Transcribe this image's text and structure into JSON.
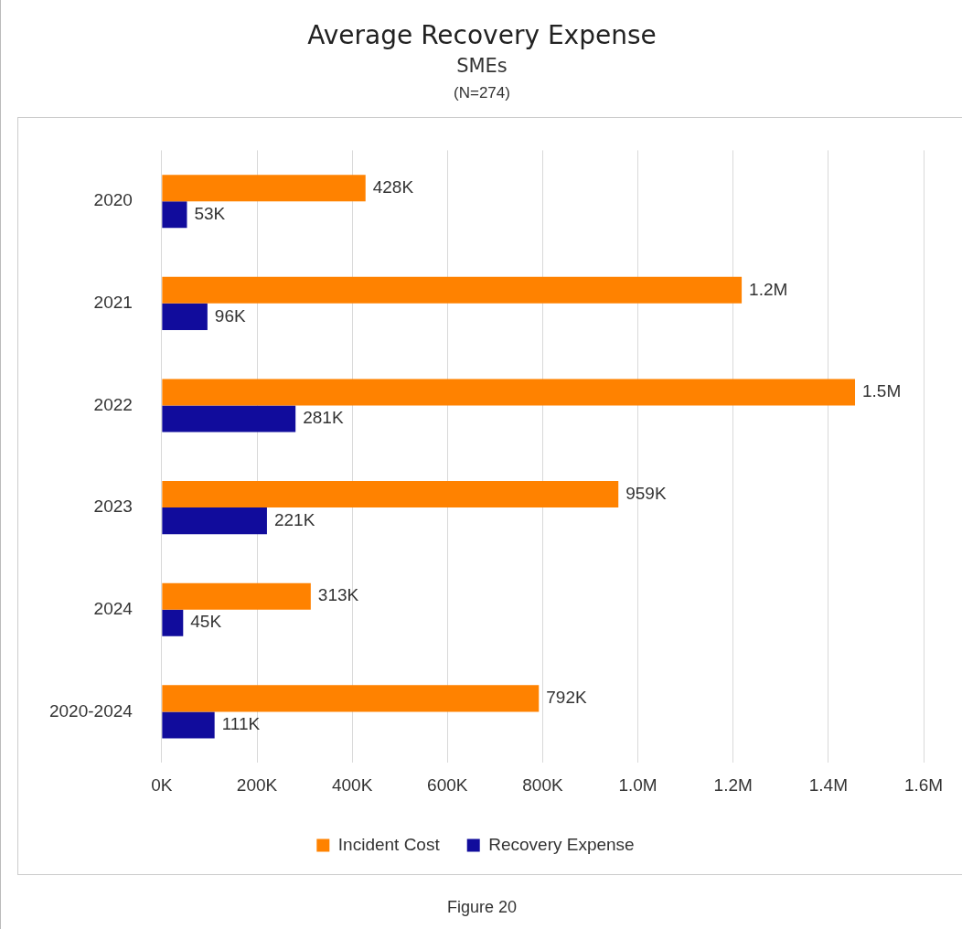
{
  "chart_data": {
    "type": "bar",
    "orientation": "horizontal",
    "title": "Average Recovery Expense",
    "subtitle": "SMEs",
    "annotations": [
      "(N=274)",
      "Figure 20"
    ],
    "categories": [
      "2020",
      "2021",
      "2022",
      "2023",
      "2024",
      "2020-2024"
    ],
    "series": [
      {
        "name": "Incident Cost",
        "color": "#ff8200",
        "values": [
          428000,
          1218000,
          1456000,
          959000,
          313000,
          792000
        ],
        "value_labels": [
          "428K",
          "1.2M",
          "1.5M",
          "959K",
          "313K",
          "792K"
        ]
      },
      {
        "name": "Recovery Expense",
        "color": "#110c9c",
        "values": [
          53000,
          96000,
          281000,
          221000,
          45000,
          111000
        ],
        "value_labels": [
          "53K",
          "96K",
          "281K",
          "221K",
          "45K",
          "111K"
        ]
      }
    ],
    "xlim": [
      0,
      1600000
    ],
    "xticks": [
      {
        "value": 0,
        "label": "0K"
      },
      {
        "value": 200000,
        "label": "200K"
      },
      {
        "value": 400000,
        "label": "400K"
      },
      {
        "value": 600000,
        "label": "600K"
      },
      {
        "value": 800000,
        "label": "800K"
      },
      {
        "value": 1000000,
        "label": "1.0M"
      },
      {
        "value": 1200000,
        "label": "1.2M"
      },
      {
        "value": 1400000,
        "label": "1.4M"
      },
      {
        "value": 1600000,
        "label": "1.6M"
      }
    ],
    "grid": "x",
    "legend": "bottom"
  }
}
